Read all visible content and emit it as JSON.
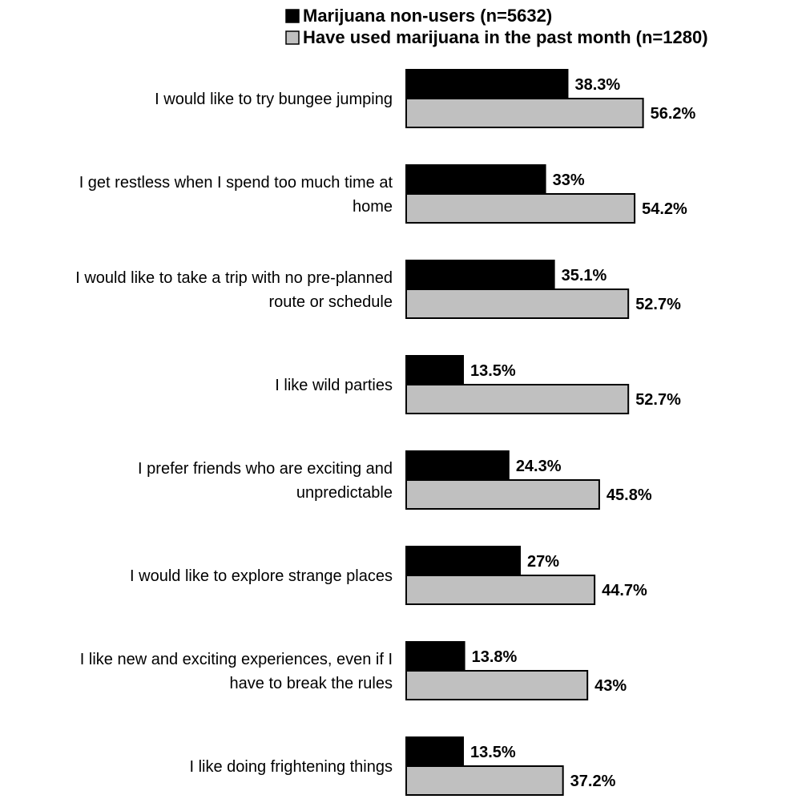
{
  "chart_data": {
    "type": "bar",
    "orientation": "horizontal",
    "title": "",
    "xlabel": "",
    "ylabel": "",
    "xlim": [
      0,
      100
    ],
    "grid": false,
    "legend_position": "top-right",
    "categories": [
      [
        "I would like to try bungee jumping"
      ],
      [
        "I get restless when I spend too much time at",
        "home"
      ],
      [
        "I would like to take a trip with no pre-planned",
        "route or schedule"
      ],
      [
        "I like wild parties"
      ],
      [
        "I prefer friends who are exciting and",
        "unpredictable"
      ],
      [
        "I would like to explore strange places"
      ],
      [
        "I like new and exciting experiences, even if I",
        "have to break the rules"
      ],
      [
        "I like doing frightening things"
      ]
    ],
    "series": [
      {
        "name": "Marijuana non-users (n=5632)",
        "color": "#000000",
        "values": [
          38.3,
          33,
          35.1,
          13.5,
          24.3,
          27,
          13.8,
          13.5
        ],
        "labels": [
          "38.3%",
          "33%",
          "35.1%",
          "13.5%",
          "24.3%",
          "27%",
          "13.8%",
          "13.5%"
        ]
      },
      {
        "name": "Have used marijuana in the past month (n=1280)",
        "color": "#c0c0c0",
        "values": [
          56.2,
          54.2,
          52.7,
          52.7,
          45.8,
          44.7,
          43,
          37.2
        ],
        "labels": [
          "56.2%",
          "54.2%",
          "52.7%",
          "52.7%",
          "45.8%",
          "44.7%",
          "43%",
          "37.2%"
        ]
      }
    ]
  }
}
